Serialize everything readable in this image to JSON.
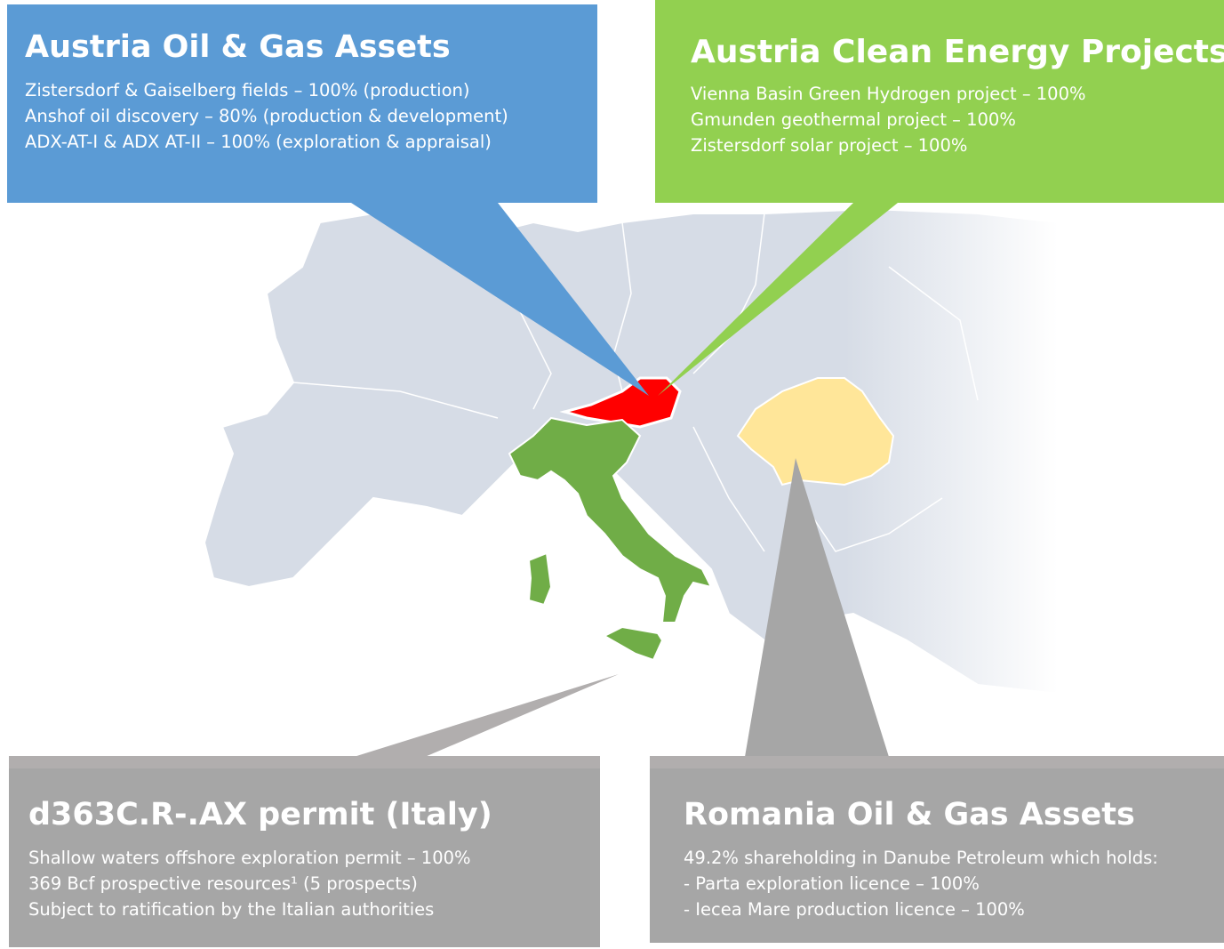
{
  "callouts": [
    {
      "title": "Austria Oil & Gas Assets",
      "lines": [
        "Zistersdorf & Gaiselberg fields – 100% (production)",
        "Anshof oil discovery – 80% (production & development)",
        "ADX-AT-I & ADX AT-II – 100% (exploration & appraisal)"
      ]
    },
    {
      "title": "Austria Clean Energy Projects",
      "lines": [
        "Vienna Basin Green Hydrogen project – 100%",
        "Gmunden geothermal project – 100%",
        "Zistersdorf solar project – 100%"
      ]
    },
    {
      "title": "d363C.R-.AX permit (Italy)",
      "lines": [
        "Shallow waters offshore exploration permit – 100%",
        "369 Bcf prospective resources¹ (5 prospects)",
        "Subject to ratification by the Italian authorities"
      ]
    },
    {
      "title": "Romania Oil & Gas Assets",
      "lines": [
        "49.2% shareholding in Danube Petroleum which holds:",
        "- Parta exploration licence – 100%",
        "- Iecea Mare production licence – 100%"
      ]
    }
  ]
}
